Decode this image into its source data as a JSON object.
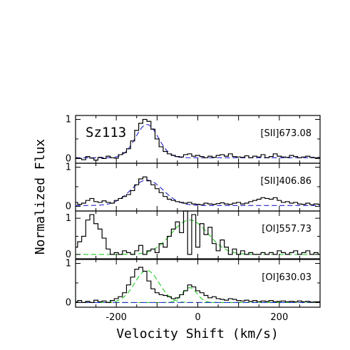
{
  "chart_data": {
    "type": "line",
    "object_name": "Sz113",
    "xlabel": "Velocity Shift (km/s)",
    "ylabel": "Normalized Flux",
    "xlim": [
      -300,
      300
    ],
    "x_ticks": [
      -200,
      0,
      200
    ],
    "y_ticks": [
      0,
      1
    ],
    "series_styles": {
      "observed": {
        "color": "#000000",
        "style": "histogram step"
      },
      "gaussian_fit": {
        "style": "dashed"
      }
    },
    "panels": [
      {
        "label": "[SII]673.08",
        "ylim": [
          -0.12,
          1.1
        ],
        "fit_color": "#2020d0",
        "observed": {
          "x": [
            -300,
            -290,
            -280,
            -270,
            -260,
            -250,
            -240,
            -230,
            -220,
            -210,
            -200,
            -190,
            -180,
            -170,
            -160,
            -150,
            -140,
            -130,
            -120,
            -110,
            -100,
            -90,
            -80,
            -70,
            -60,
            -50,
            -40,
            -30,
            -20,
            -10,
            0,
            10,
            20,
            30,
            40,
            50,
            60,
            70,
            80,
            90,
            100,
            110,
            120,
            130,
            140,
            150,
            160,
            170,
            180,
            190,
            200,
            210,
            220,
            230,
            240,
            250,
            260,
            270,
            280,
            290,
            300
          ],
          "y": [
            0.02,
            0.0,
            -0.03,
            0.05,
            0.01,
            -0.04,
            0.03,
            0.0,
            0.06,
            0.02,
            0.01,
            0.1,
            0.15,
            0.25,
            0.45,
            0.72,
            0.9,
            1.0,
            0.95,
            0.75,
            0.5,
            0.3,
            0.18,
            0.12,
            0.08,
            0.05,
            0.04,
            0.1,
            0.12,
            0.06,
            0.08,
            0.05,
            0.02,
            0.06,
            0.03,
            0.08,
            0.1,
            0.06,
            0.12,
            0.05,
            0.04,
            0.03,
            0.07,
            0.02,
            0.06,
            0.04,
            0.1,
            0.02,
            0.05,
            0.12,
            0.06,
            0.04,
            0.03,
            0.08,
            0.05,
            0.02,
            0.04,
            0.06,
            0.03,
            0.02,
            0.03
          ]
        },
        "gaussian_fit": {
          "amplitude": 0.85,
          "center": -125,
          "sigma": 28,
          "baseline": 0.02
        }
      },
      {
        "label": "[SII]406.86",
        "ylim": [
          -0.12,
          1.1
        ],
        "fit_color": "#2020d0",
        "observed": {
          "x": [
            -300,
            -290,
            -280,
            -270,
            -260,
            -250,
            -240,
            -230,
            -220,
            -210,
            -200,
            -190,
            -180,
            -170,
            -160,
            -150,
            -140,
            -130,
            -120,
            -110,
            -100,
            -90,
            -80,
            -70,
            -60,
            -50,
            -40,
            -30,
            -20,
            -10,
            0,
            10,
            20,
            30,
            40,
            50,
            60,
            70,
            80,
            90,
            100,
            110,
            120,
            130,
            140,
            150,
            160,
            170,
            180,
            190,
            200,
            210,
            220,
            230,
            240,
            250,
            260,
            270,
            280,
            290,
            300
          ],
          "y": [
            0.1,
            0.05,
            0.08,
            0.15,
            0.2,
            0.12,
            0.1,
            0.14,
            0.1,
            0.08,
            0.15,
            0.2,
            0.25,
            0.3,
            0.4,
            0.55,
            0.7,
            0.75,
            0.65,
            0.55,
            0.45,
            0.35,
            0.25,
            0.18,
            0.15,
            0.12,
            0.1,
            0.08,
            0.1,
            0.06,
            0.05,
            0.04,
            0.08,
            0.06,
            0.05,
            0.07,
            0.09,
            0.06,
            0.05,
            0.08,
            0.1,
            0.06,
            0.08,
            0.12,
            0.15,
            0.18,
            0.22,
            0.2,
            0.18,
            0.22,
            0.15,
            0.1,
            0.12,
            0.08,
            0.1,
            0.06,
            0.05,
            0.08,
            0.04,
            0.06,
            0.05
          ]
        },
        "gaussian_fit": {
          "amplitude": 0.65,
          "center": -125,
          "sigma": 40,
          "baseline": 0.02
        }
      },
      {
        "label": "[OI]557.73",
        "ylim": [
          -0.12,
          1.2
        ],
        "fit_color": "#22cc22",
        "observed": {
          "x": [
            -300,
            -290,
            -280,
            -270,
            -260,
            -250,
            -240,
            -230,
            -220,
            -210,
            -200,
            -190,
            -180,
            -170,
            -160,
            -150,
            -140,
            -130,
            -120,
            -110,
            -100,
            -90,
            -80,
            -70,
            -60,
            -50,
            -40,
            -30,
            -20,
            -10,
            0,
            10,
            20,
            30,
            40,
            50,
            60,
            70,
            80,
            90,
            100,
            110,
            120,
            130,
            140,
            150,
            160,
            170,
            180,
            190,
            200,
            210,
            220,
            230,
            240,
            250,
            260,
            270,
            280,
            290,
            300
          ],
          "y": [
            0.2,
            0.35,
            0.5,
            0.95,
            1.1,
            0.85,
            0.7,
            0.45,
            0.15,
            0.0,
            0.05,
            0.0,
            0.1,
            0.05,
            0.0,
            0.1,
            0.25,
            0.0,
            0.1,
            0.15,
            0.05,
            0.3,
            0.2,
            0.5,
            0.7,
            0.9,
            0.6,
            1.2,
            0.0,
            1.1,
            0.2,
            0.85,
            0.55,
            0.75,
            0.3,
            0.1,
            0.4,
            0.2,
            0.0,
            0.15,
            0.0,
            0.1,
            0.0,
            0.05,
            0.0,
            0.0,
            0.05,
            0.0,
            0.05,
            0.0,
            0.1,
            0.05,
            0.0,
            0.05,
            0.1,
            0.0,
            0.05,
            0.1,
            0.0,
            0.05,
            0.0
          ]
        },
        "gaussian_fit": {
          "amplitude": 0.95,
          "center": -20,
          "sigma": 45,
          "baseline": 0.0
        }
      },
      {
        "label": "[OI]630.03",
        "ylim": [
          -0.12,
          1.1
        ],
        "fit_color": "#22cc22",
        "blend_color": "#2020d0",
        "observed": {
          "x": [
            -300,
            -290,
            -280,
            -270,
            -260,
            -250,
            -240,
            -230,
            -220,
            -210,
            -200,
            -190,
            -180,
            -170,
            -160,
            -150,
            -140,
            -130,
            -120,
            -110,
            -100,
            -90,
            -80,
            -70,
            -60,
            -50,
            -40,
            -30,
            -20,
            -10,
            0,
            10,
            20,
            30,
            40,
            50,
            60,
            70,
            80,
            90,
            100,
            110,
            120,
            130,
            140,
            150,
            160,
            170,
            180,
            190,
            200,
            210,
            220,
            230,
            240,
            250,
            260,
            270,
            280,
            290,
            300
          ],
          "y": [
            0.02,
            0.05,
            0.0,
            0.03,
            0.0,
            0.06,
            0.02,
            0.04,
            0.0,
            0.05,
            0.1,
            0.15,
            0.25,
            0.45,
            0.65,
            0.85,
            0.9,
            0.8,
            0.55,
            0.35,
            0.25,
            0.2,
            0.18,
            0.15,
            0.1,
            0.12,
            0.2,
            0.3,
            0.45,
            0.4,
            0.3,
            0.25,
            0.18,
            0.12,
            0.15,
            0.1,
            0.08,
            0.06,
            0.1,
            0.08,
            0.05,
            0.04,
            0.06,
            0.03,
            0.05,
            0.02,
            0.04,
            0.03,
            0.05,
            0.02,
            0.03,
            0.04,
            0.02,
            0.03,
            0.02,
            0.04,
            0.02,
            0.03,
            0.01,
            0.02,
            0.02
          ]
        },
        "gaussian_fit": {
          "amplitude": 0.82,
          "center": -125,
          "sigma": 30,
          "baseline": 0.0
        },
        "gaussian_fit_2": {
          "amplitude": 0.38,
          "center": -20,
          "sigma": 18,
          "baseline": 0.0
        }
      }
    ]
  }
}
